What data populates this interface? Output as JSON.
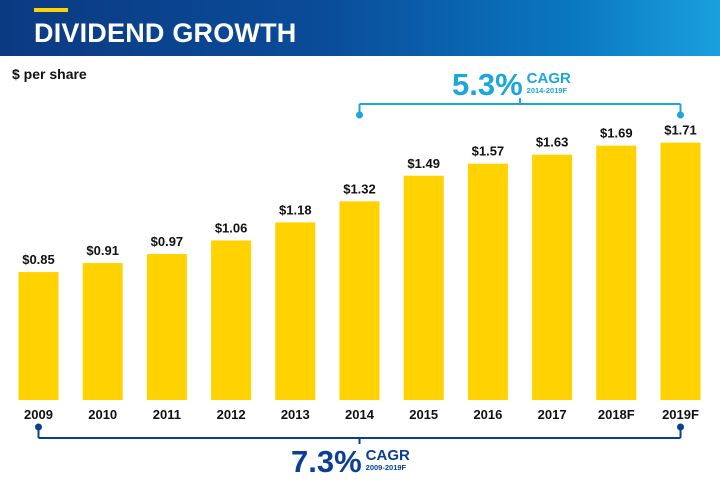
{
  "header": {
    "title": "DIVIDEND GROWTH"
  },
  "unit_label": "$ per share",
  "cagr_top": {
    "value": "5.3%",
    "label": "CAGR",
    "range": "2014-2019F",
    "color": "#1ba6dc"
  },
  "cagr_bottom": {
    "value": "7.3%",
    "label": "CAGR",
    "range": "2009-2019F",
    "color": "#0a3f93"
  },
  "colors": {
    "bar": "#ffd200",
    "header_dark": "#0b3a82",
    "header_light": "#1aa0de"
  },
  "chart_data": {
    "type": "bar",
    "categories": [
      "2009",
      "2010",
      "2011",
      "2012",
      "2013",
      "2014",
      "2015",
      "2016",
      "2017",
      "2018F",
      "2019F"
    ],
    "values": [
      0.85,
      0.91,
      0.97,
      1.06,
      1.18,
      1.32,
      1.49,
      1.57,
      1.63,
      1.69,
      1.71
    ],
    "data_labels": [
      "$0.85",
      "$0.91",
      "$0.97",
      "$1.06",
      "$1.18",
      "$1.32",
      "$1.49",
      "$1.57",
      "$1.63",
      "$1.69",
      "$1.71"
    ],
    "title": "DIVIDEND GROWTH",
    "ylabel": "$ per share",
    "grid": false,
    "legend": "none"
  }
}
